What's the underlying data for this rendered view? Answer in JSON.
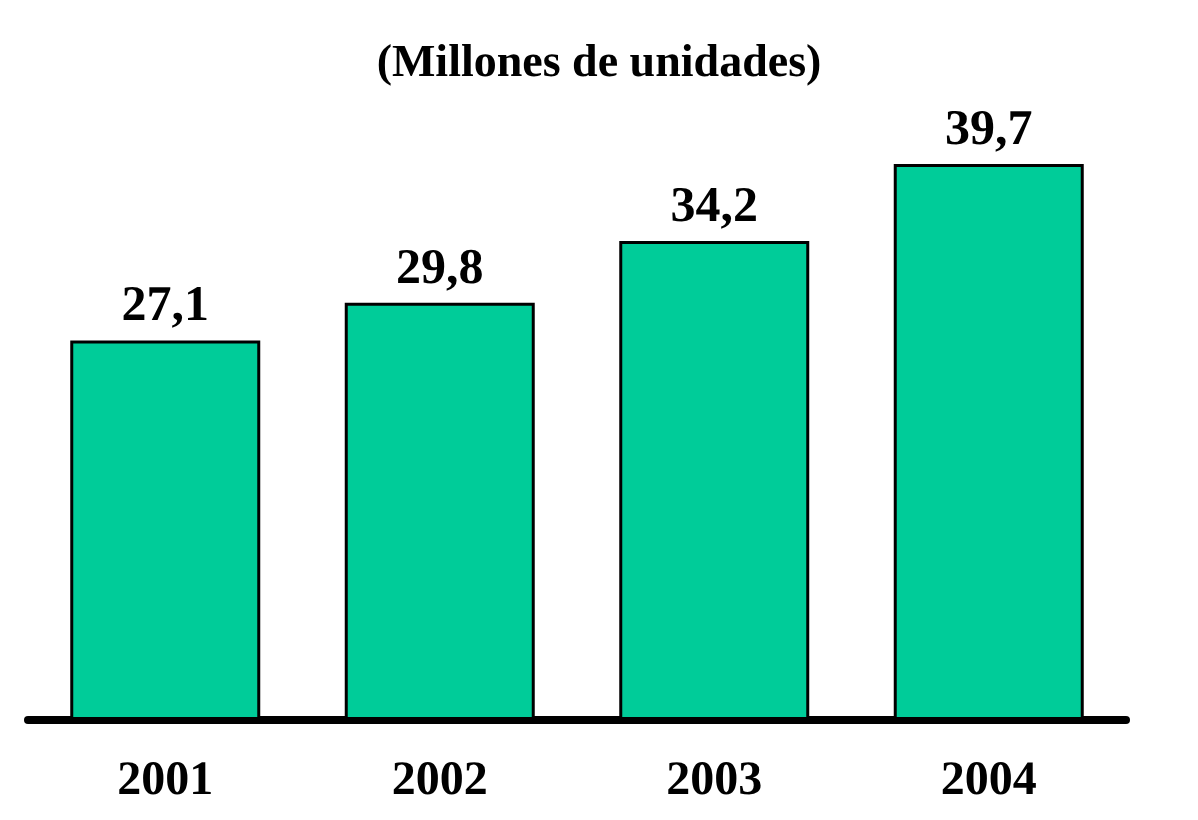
{
  "chart_data": {
    "type": "bar",
    "title": "(Millones de unidades)",
    "categories": [
      "2001",
      "2002",
      "2003",
      "2004"
    ],
    "values": [
      27.1,
      29.8,
      34.2,
      39.7
    ],
    "value_labels": [
      "27,1",
      "29,8",
      "34,2",
      "39,7"
    ],
    "color": "#00cc99"
  }
}
